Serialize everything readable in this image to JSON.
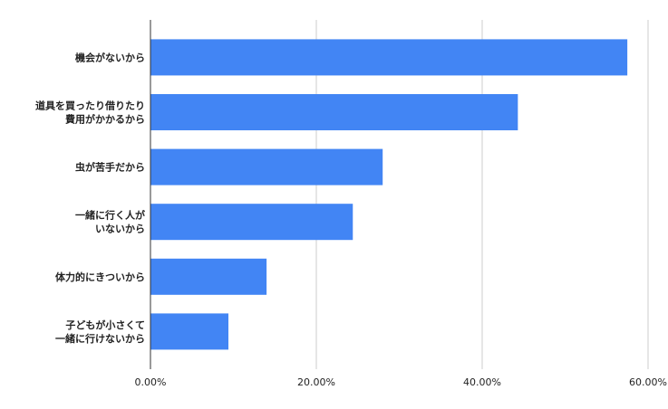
{
  "chart_data": {
    "type": "bar",
    "orientation": "horizontal",
    "categories": [
      [
        "機会がないから"
      ],
      [
        "道具を買ったり借りたり",
        "費用がかかるから"
      ],
      [
        "虫が苦手だから"
      ],
      [
        "一緒に行く人が",
        "いないから"
      ],
      [
        "体力的にきついから"
      ],
      [
        "子どもが小さくて",
        "一緒に行けないから"
      ]
    ],
    "values": [
      57.5,
      44.3,
      28.0,
      24.4,
      14.0,
      9.4
    ],
    "xlim": [
      0,
      60
    ],
    "xticks": [
      0,
      20,
      40,
      60
    ],
    "xtick_labels": [
      "0.00%",
      "20.00%",
      "40.00%",
      "60.00%"
    ],
    "grid": true,
    "legend": "none",
    "colors": {
      "bar": "#4285f4",
      "grid": "#cccccc",
      "axis": "#333333"
    }
  }
}
